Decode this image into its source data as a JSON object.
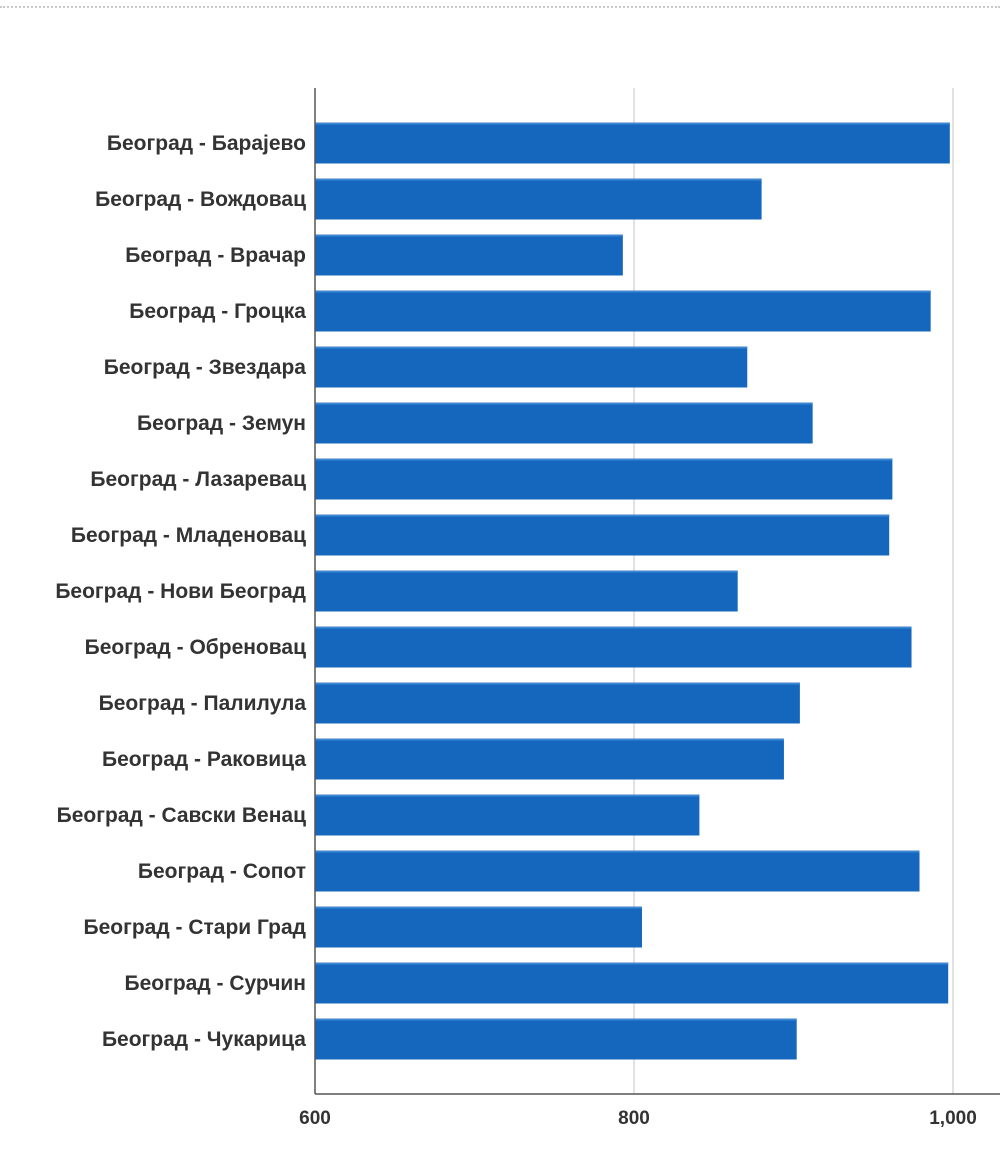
{
  "chart_data": {
    "type": "bar",
    "orientation": "horizontal",
    "categories": [
      "Београд - Барајево",
      "Београд - Вождовац",
      "Београд - Врачар",
      "Београд - Гроцка",
      "Београд - Звездара",
      "Београд - Земун",
      "Београд - Лазаревац",
      "Београд - Младеновац",
      "Београд - Нови Београд",
      "Београд - Обреновац",
      "Београд - Палилула",
      "Београд - Раковица",
      "Београд - Савски Венац",
      "Београд - Сопот",
      "Београд - Стари Град",
      "Београд - Сурчин",
      "Београд - Чукарица"
    ],
    "values": [
      998,
      880,
      793,
      986,
      871,
      912,
      962,
      960,
      865,
      974,
      904,
      894,
      841,
      979,
      805,
      997,
      902
    ],
    "xlim": [
      600,
      1020
    ],
    "xticks": [
      600,
      800,
      1000
    ],
    "xtick_labels": [
      "600",
      "800",
      "1,000"
    ],
    "grid": "vertical",
    "bar_color": "#1467bd",
    "title": "",
    "xlabel": "",
    "ylabel": ""
  }
}
